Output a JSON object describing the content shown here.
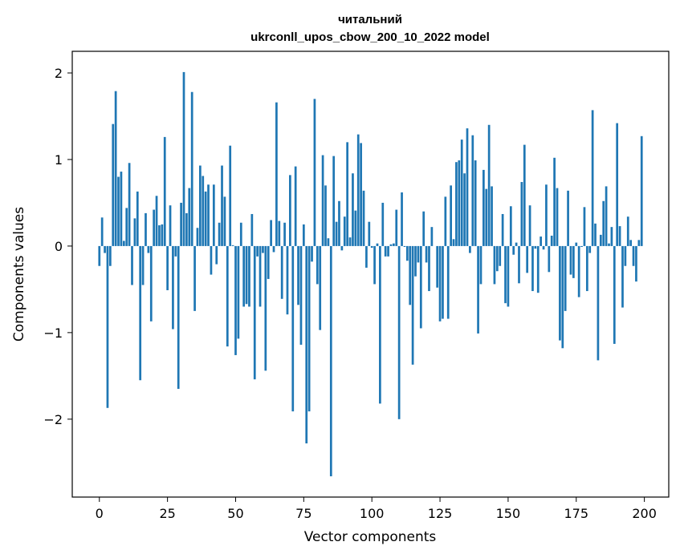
{
  "chart_data": {
    "type": "bar",
    "title": [
      "читальний",
      "ukrconll_upos_cbow_200_10_2022 model"
    ],
    "xlabel": "Vector components",
    "ylabel": "Components values",
    "xlim": [
      -9.95,
      208.95
    ],
    "ylim": [
      -2.9,
      2.25
    ],
    "xticks": [
      0,
      25,
      50,
      75,
      100,
      125,
      150,
      175,
      200
    ],
    "xtick_labels": [
      "0",
      "25",
      "50",
      "75",
      "100",
      "125",
      "150",
      "175",
      "200"
    ],
    "yticks": [
      -2,
      -1,
      0,
      1,
      2
    ],
    "ytick_labels": [
      "−2",
      "−1",
      "0",
      "1",
      "2"
    ],
    "grid": false,
    "color": "#1f77b4",
    "x_start": 0,
    "values": [
      -0.23,
      0.33,
      -0.08,
      -1.87,
      -0.23,
      1.41,
      1.79,
      0.8,
      0.86,
      0.06,
      0.44,
      0.96,
      -0.45,
      0.32,
      0.63,
      -1.55,
      -0.45,
      0.38,
      -0.08,
      -0.87,
      0.42,
      0.58,
      0.24,
      0.25,
      1.26,
      -0.51,
      0.47,
      -0.96,
      -0.12,
      -1.65,
      0.5,
      2.01,
      0.38,
      0.67,
      1.78,
      -0.75,
      0.21,
      0.93,
      0.81,
      0.63,
      0.71,
      -0.33,
      0.71,
      -0.21,
      0.27,
      0.93,
      0.57,
      -1.16,
      1.16,
      0.01,
      -1.26,
      -1.07,
      0.27,
      -0.7,
      -0.67,
      -0.7,
      0.37,
      -1.54,
      -0.12,
      -0.7,
      -0.08,
      -1.44,
      -0.38,
      0.3,
      -0.07,
      1.66,
      0.29,
      -0.61,
      0.27,
      -0.79,
      0.82,
      -1.91,
      0.92,
      -0.68,
      -1.14,
      0.25,
      -2.28,
      -1.91,
      -0.18,
      1.7,
      -0.44,
      -0.97,
      1.05,
      0.7,
      0.09,
      -2.66,
      1.04,
      0.28,
      0.52,
      -0.05,
      0.34,
      1.2,
      0.1,
      0.84,
      0.41,
      1.29,
      1.19,
      0.64,
      -0.25,
      0.28,
      -0.02,
      -0.44,
      0.03,
      -1.82,
      0.5,
      -0.12,
      -0.12,
      0.02,
      0.03,
      0.42,
      -2.0,
      0.62,
      -0.01,
      -0.17,
      -0.68,
      -1.37,
      -0.35,
      -0.19,
      -0.95,
      0.4,
      -0.19,
      -0.52,
      0.22,
      0.0,
      -0.48,
      -0.87,
      -0.84,
      0.57,
      -0.84,
      0.7,
      0.08,
      0.97,
      0.99,
      1.23,
      0.84,
      1.36,
      -0.08,
      1.28,
      0.99,
      -1.01,
      -0.44,
      0.88,
      0.66,
      1.4,
      0.69,
      -0.44,
      -0.29,
      -0.23,
      0.37,
      -0.66,
      -0.7,
      0.46,
      -0.1,
      0.04,
      -0.43,
      0.74,
      1.17,
      -0.31,
      0.47,
      -0.52,
      -0.03,
      -0.54,
      0.11,
      -0.04,
      0.71,
      -0.3,
      0.12,
      1.02,
      0.67,
      -1.09,
      -1.18,
      -0.75,
      0.64,
      -0.33,
      -0.37,
      0.04,
      -0.59,
      -0.01,
      0.45,
      -0.52,
      -0.08,
      1.57,
      0.26,
      -1.32,
      0.13,
      0.52,
      0.69,
      0.03,
      0.22,
      -1.13,
      1.42,
      0.23,
      -0.71,
      -0.23,
      0.34,
      0.07,
      -0.23,
      -0.41,
      0.07,
      1.27
    ]
  }
}
